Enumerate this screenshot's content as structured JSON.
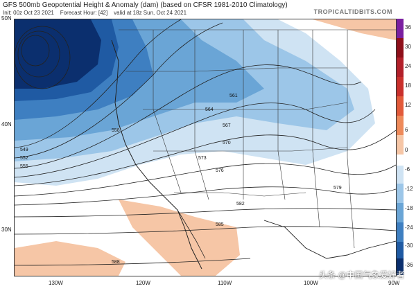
{
  "header": {
    "title": "GFS 500mb Geopotential Height & Anomaly (dam) (based on CFSR 1981-2010 Climatology)",
    "init": "Init: 00z Oct 23 2021",
    "forecast_hour": "Forecast Hour: [42]",
    "valid": "valid at 18z Sun, Oct 24 2021",
    "site": "TROPICALTIDBITS.COM"
  },
  "lat_labels": [
    "50N",
    "40N",
    "30N"
  ],
  "lon_labels": [
    "130W",
    "120W",
    "110W",
    "100W",
    "90W"
  ],
  "colorbar": {
    "ticks": [
      "36",
      "30",
      "24",
      "18",
      "12",
      "6",
      "0",
      "-6",
      "-12",
      "-18",
      "-24",
      "-30",
      "-36"
    ],
    "colors": {
      "purple": "#7a1fa0",
      "darkred": "#8e0f1a",
      "red": "#c9302c",
      "orange": "#ee8a5a",
      "lightorange": "#f6c6a6",
      "white": "#ffffff",
      "lightblue": "#cfe3f3",
      "blue1": "#9cc6e8",
      "blue2": "#6aa5d6",
      "blue3": "#3e7fc1",
      "blue4": "#1f5aa3",
      "navy": "#0b2f6e"
    }
  },
  "contours": [
    "549",
    "552",
    "555",
    "558",
    "561",
    "564",
    "567",
    "570",
    "573",
    "576",
    "579",
    "582",
    "585",
    "588"
  ],
  "watermark": "头条 @中国气象爱好者"
}
